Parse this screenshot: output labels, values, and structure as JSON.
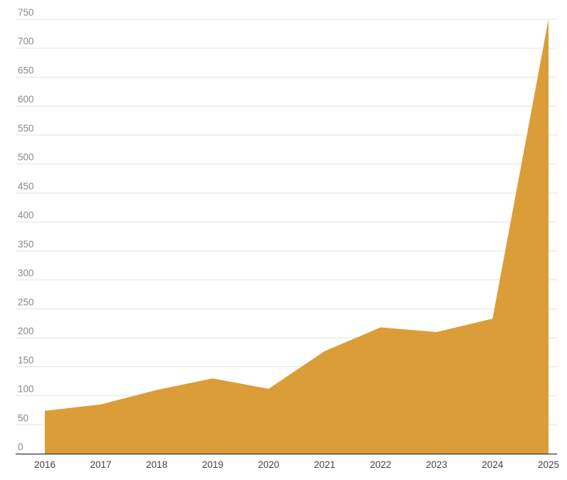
{
  "colors": {
    "area": "#DB9D38",
    "grid": "#E3E3E3",
    "axis": "#333333"
  },
  "chart_data": {
    "type": "area",
    "title": "",
    "xlabel": "",
    "ylabel": "",
    "grid": true,
    "legend": "none",
    "x": [
      "2016",
      "2017",
      "2018",
      "2019",
      "2020",
      "2021",
      "2022",
      "2023",
      "2024",
      "2025"
    ],
    "series": [
      {
        "values": [
          74,
          85,
          110,
          130,
          112,
          177,
          218,
          210,
          233,
          750
        ]
      }
    ],
    "ylim": [
      0,
      750
    ],
    "yticks": [
      0,
      50,
      100,
      150,
      200,
      250,
      300,
      350,
      400,
      450,
      500,
      550,
      600,
      650,
      700,
      750
    ]
  }
}
